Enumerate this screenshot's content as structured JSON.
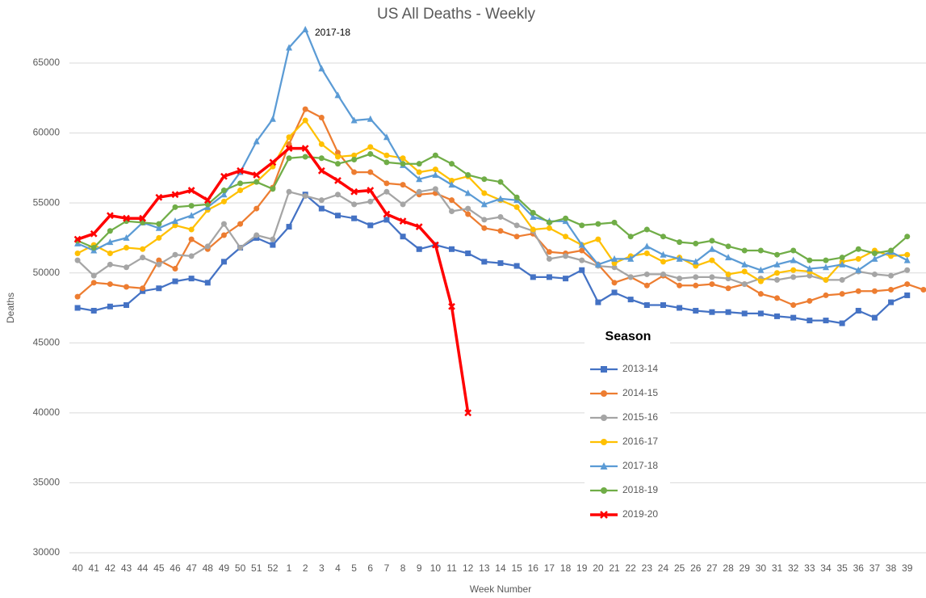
{
  "chart_data": {
    "type": "line",
    "title": "US All Deaths - Weekly",
    "x_label": "Week Number",
    "y_label": "Deaths",
    "annotation": "2017-18",
    "legend_title": "Season",
    "legend_position": "center",
    "grid": true,
    "ylim": [
      30000,
      65000
    ],
    "yticks": [
      30000,
      35000,
      40000,
      45000,
      50000,
      55000,
      60000,
      65000
    ],
    "categories": [
      "40",
      "41",
      "42",
      "43",
      "44",
      "45",
      "46",
      "47",
      "48",
      "49",
      "50",
      "51",
      "52",
      "1",
      "2",
      "3",
      "4",
      "5",
      "6",
      "7",
      "8",
      "9",
      "10",
      "11",
      "12",
      "13",
      "14",
      "15",
      "16",
      "17",
      "18",
      "19",
      "20",
      "21",
      "22",
      "23",
      "24",
      "25",
      "26",
      "27",
      "28",
      "29",
      "30",
      "31",
      "32",
      "33",
      "34",
      "35",
      "36",
      "37",
      "38",
      "39",
      null
    ],
    "series": [
      {
        "name": "2013-14",
        "color": "#4472c4",
        "marker": "square",
        "values": [
          47500,
          47300,
          47600,
          47700,
          48700,
          48900,
          49400,
          49600,
          49300,
          50800,
          51800,
          52500,
          52000,
          53300,
          55600,
          54600,
          54100,
          53900,
          53400,
          53800,
          52600,
          51700,
          52000,
          51700,
          51400,
          50800,
          50700,
          50500,
          49700,
          49700,
          49600,
          50200,
          47900,
          48600,
          48100,
          47700,
          47700,
          47500,
          47300,
          47200,
          47200,
          47100,
          47100,
          46900,
          46800,
          46600,
          46600,
          46400,
          47300,
          46800,
          47900,
          48400,
          null
        ]
      },
      {
        "name": "2014-15",
        "color": "#ed7d31",
        "marker": "circle",
        "values": [
          48300,
          49300,
          49200,
          49000,
          48900,
          50900,
          50300,
          52400,
          51700,
          52700,
          53500,
          54600,
          56100,
          59200,
          61700,
          61100,
          58600,
          57200,
          57200,
          56400,
          56300,
          55600,
          55700,
          55200,
          54200,
          53200,
          53000,
          52600,
          52800,
          51500,
          51400,
          51600,
          50600,
          49300,
          49700,
          49100,
          49800,
          49100,
          49100,
          49200,
          48900,
          49200,
          48500,
          48200,
          47700,
          48000,
          48400,
          48500,
          48700,
          48700,
          48800,
          49200,
          48800
        ]
      },
      {
        "name": "2015-16",
        "color": "#a5a5a5",
        "marker": "circle",
        "values": [
          50900,
          49800,
          50600,
          50400,
          51100,
          50600,
          51300,
          51200,
          51900,
          53500,
          51800,
          52700,
          52400,
          55800,
          55500,
          55200,
          55600,
          54900,
          55100,
          55800,
          54900,
          55800,
          56000,
          54400,
          54600,
          53800,
          54000,
          53400,
          53000,
          51000,
          51200,
          50900,
          50500,
          50400,
          49700,
          49900,
          49900,
          49600,
          49700,
          49700,
          49600,
          49200,
          49600,
          49500,
          49700,
          49800,
          49500,
          49500,
          50100,
          49900,
          49800,
          50200,
          null
        ]
      },
      {
        "name": "2016-17",
        "color": "#ffc000",
        "marker": "circle",
        "values": [
          51400,
          52000,
          51400,
          51800,
          51700,
          52500,
          53400,
          53100,
          54500,
          55100,
          55900,
          56500,
          57600,
          59700,
          60900,
          59200,
          58300,
          58400,
          59000,
          58400,
          58200,
          57200,
          57400,
          56600,
          56900,
          55700,
          55200,
          54700,
          53100,
          53200,
          52600,
          52000,
          52400,
          50700,
          51200,
          51400,
          50800,
          51100,
          50500,
          50900,
          49900,
          50100,
          49400,
          50000,
          50200,
          50100,
          49500,
          50800,
          51000,
          51600,
          51200,
          51300,
          null
        ]
      },
      {
        "name": "2017-18",
        "color": "#5b9bd5",
        "marker": "triangle",
        "values": [
          52100,
          51600,
          52200,
          52500,
          53600,
          53200,
          53700,
          54100,
          54700,
          55600,
          57200,
          59400,
          61000,
          66100,
          67400,
          64600,
          62700,
          60900,
          61000,
          59700,
          57700,
          56700,
          57000,
          56300,
          55700,
          54900,
          55300,
          55200,
          54000,
          53700,
          53700,
          52000,
          50600,
          51000,
          51000,
          51900,
          51300,
          51000,
          50800,
          51700,
          51100,
          50600,
          50200,
          50600,
          50900,
          50300,
          50400,
          50600,
          50200,
          51000,
          51500,
          50900,
          null
        ]
      },
      {
        "name": "2018-19",
        "color": "#70ad47",
        "marker": "circle",
        "values": [
          52300,
          51800,
          53000,
          53700,
          53600,
          53500,
          54700,
          54800,
          54900,
          55900,
          56400,
          56500,
          56000,
          58200,
          58300,
          58200,
          57800,
          58100,
          58500,
          57900,
          57800,
          57800,
          58400,
          57800,
          57000,
          56700,
          56500,
          55400,
          54300,
          53600,
          53900,
          53400,
          53500,
          53600,
          52600,
          53100,
          52600,
          52200,
          52100,
          52300,
          51900,
          51600,
          51600,
          51300,
          51600,
          50900,
          50900,
          51100,
          51700,
          51400,
          51600,
          52600,
          null
        ]
      },
      {
        "name": "2019-20",
        "color": "#ff0000",
        "marker": "x",
        "values": [
          52400,
          52800,
          54100,
          53900,
          53900,
          55400,
          55600,
          55900,
          55200,
          56900,
          57300,
          57000,
          57900,
          58900,
          58900,
          57300,
          56600,
          55800,
          55900,
          54200,
          53700,
          53300,
          52000,
          47600,
          40000,
          null,
          null,
          null,
          null,
          null,
          null,
          null,
          null,
          null,
          null,
          null,
          null,
          null,
          null,
          null,
          null,
          null,
          null,
          null,
          null,
          null,
          null,
          null,
          null,
          null,
          null,
          null,
          null
        ]
      }
    ]
  }
}
